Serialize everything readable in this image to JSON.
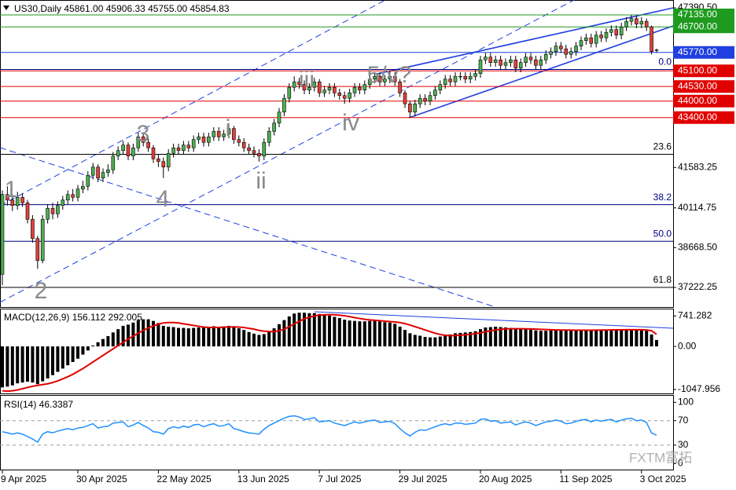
{
  "chart_data": [
    {
      "type": "candlestick",
      "title": "US30,Daily  45861.00 45906.33 45755.00 45854.83",
      "categories": [
        "9 Apr 2025",
        null,
        null,
        null,
        null,
        null,
        null,
        null,
        null,
        null,
        null,
        null,
        null,
        null,
        null,
        "30 Apr 2025",
        null,
        null,
        null,
        null,
        null,
        null,
        null,
        null,
        null,
        null,
        null,
        null,
        null,
        null,
        null,
        "22 May 2025",
        null,
        null,
        null,
        null,
        null,
        null,
        null,
        null,
        null,
        null,
        null,
        null,
        null,
        null,
        null,
        "13 Jun 2025",
        null,
        null,
        null,
        null,
        null,
        null,
        null,
        null,
        null,
        null,
        null,
        null,
        null,
        null,
        null,
        "7 Jul 2025",
        null,
        null,
        null,
        null,
        null,
        null,
        null,
        null,
        null,
        null,
        null,
        null,
        null,
        null,
        null,
        "29 Jul 2025",
        null,
        null,
        null,
        null,
        null,
        null,
        null,
        null,
        null,
        null,
        null,
        null,
        null,
        null,
        null,
        "20 Aug 2025",
        null,
        null,
        null,
        null,
        null,
        null,
        null,
        null,
        null,
        null,
        null,
        null,
        null,
        null,
        null,
        "11 Sep 2025",
        null,
        null,
        null,
        null,
        null,
        null,
        null,
        null,
        null,
        null,
        null,
        null,
        null,
        null,
        null,
        "3 Oct 2025",
        null,
        null,
        null
      ],
      "open": [
        37700,
        40600,
        40400,
        40200,
        40500,
        40300,
        39700,
        39000,
        38200,
        39700,
        40100,
        39900,
        40200,
        40400,
        40600,
        40500,
        40800,
        40900,
        41300,
        41600,
        41200,
        41400,
        41500,
        42000,
        42200,
        42400,
        42000,
        42300,
        42700,
        42500,
        42300,
        41900,
        41800,
        41600,
        42100,
        42300,
        42200,
        42400,
        42300,
        42600,
        42700,
        42500,
        42700,
        42900,
        42700,
        42800,
        43000,
        42600,
        42500,
        42300,
        42200,
        42100,
        42000,
        42500,
        42900,
        43200,
        43600,
        44100,
        44500,
        44700,
        44600,
        44400,
        44500,
        44700,
        44300,
        44400,
        44500,
        44300,
        44200,
        44100,
        44300,
        44500,
        44400,
        44600,
        44800,
        44900,
        44700,
        44800,
        44900,
        44700,
        44300,
        43900,
        43600,
        43900,
        44100,
        44000,
        44200,
        44400,
        44600,
        44800,
        44700,
        44900,
        44900,
        44800,
        44900,
        45000,
        45500,
        45600,
        45400,
        45500,
        45300,
        45400,
        45500,
        45200,
        45400,
        45600,
        45500,
        45300,
        45500,
        45700,
        45800,
        46000,
        45900,
        45700,
        45800,
        46000,
        46200,
        46300,
        46100,
        46400,
        46300,
        46500,
        46600,
        46400,
        46700,
        46900,
        47000,
        46800,
        46900,
        46700,
        45861
      ],
      "high": [
        40750,
        40900,
        40600,
        40700,
        40650,
        40400,
        39850,
        39100,
        39850,
        40250,
        40300,
        40350,
        40550,
        40750,
        40800,
        40950,
        41100,
        41450,
        41750,
        41700,
        41550,
        41700,
        42150,
        42350,
        42550,
        42500,
        42450,
        42850,
        42800,
        42650,
        42400,
        42050,
        41950,
        42250,
        42450,
        42450,
        42550,
        42550,
        42750,
        42850,
        42850,
        42850,
        43050,
        43050,
        42950,
        43200,
        43100,
        42750,
        42650,
        42450,
        42350,
        42250,
        42650,
        43050,
        43350,
        43750,
        44250,
        44650,
        44900,
        44850,
        44750,
        44650,
        44850,
        44800,
        44550,
        44650,
        44650,
        44450,
        44350,
        44450,
        44650,
        44650,
        44750,
        44950,
        45050,
        45050,
        44950,
        45100,
        45050,
        44800,
        44400,
        44000,
        44050,
        44250,
        44250,
        44350,
        44550,
        44750,
        44950,
        44950,
        45050,
        45050,
        45050,
        45050,
        45150,
        45650,
        45750,
        45750,
        45650,
        45650,
        45550,
        45650,
        45650,
        45550,
        45750,
        45750,
        45650,
        45650,
        45850,
        45950,
        46150,
        46150,
        46050,
        45950,
        46150,
        46350,
        46450,
        46450,
        46550,
        46550,
        46650,
        46750,
        46750,
        46850,
        47050,
        47135,
        47100,
        47050,
        47000,
        46750,
        45906.33
      ],
      "low": [
        37300,
        40200,
        40000,
        40050,
        40150,
        39550,
        38850,
        37900,
        38100,
        39550,
        39700,
        39750,
        40050,
        40250,
        40350,
        40350,
        40650,
        40750,
        41150,
        41050,
        41050,
        41250,
        41350,
        41850,
        42050,
        41850,
        41850,
        42150,
        42350,
        42150,
        41750,
        41600,
        41200,
        41450,
        41950,
        42050,
        42050,
        42150,
        42150,
        42450,
        42350,
        42350,
        42550,
        42550,
        42550,
        42650,
        42450,
        42350,
        42150,
        42050,
        41950,
        41800,
        41850,
        42350,
        42750,
        43050,
        43450,
        43950,
        44350,
        44450,
        44250,
        44250,
        44350,
        44150,
        44150,
        44250,
        44150,
        44050,
        43900,
        43950,
        44150,
        44250,
        44250,
        44450,
        44650,
        44550,
        44550,
        44650,
        44550,
        44150,
        43750,
        43400,
        43450,
        43750,
        43850,
        43850,
        44050,
        44250,
        44450,
        44550,
        44550,
        44750,
        44650,
        44650,
        44750,
        44850,
        45350,
        45250,
        45250,
        45150,
        45150,
        45250,
        45050,
        45050,
        45250,
        45350,
        45150,
        45150,
        45350,
        45550,
        45650,
        45750,
        45550,
        45550,
        45650,
        45850,
        46050,
        45950,
        45950,
        46150,
        46150,
        46350,
        46250,
        46250,
        46550,
        46750,
        46650,
        46650,
        46550,
        45700,
        45755
      ],
      "close": [
        40600,
        40400,
        40200,
        40500,
        40300,
        39700,
        39000,
        38200,
        39700,
        40100,
        39900,
        40200,
        40400,
        40600,
        40500,
        40800,
        40900,
        41300,
        41600,
        41200,
        41400,
        41500,
        42000,
        42200,
        42400,
        42000,
        42300,
        42700,
        42500,
        42300,
        41900,
        41800,
        41600,
        42100,
        42300,
        42200,
        42400,
        42300,
        42600,
        42700,
        42500,
        42700,
        42900,
        42700,
        42800,
        43000,
        42600,
        42500,
        42300,
        42200,
        42100,
        42000,
        42500,
        42900,
        43200,
        43600,
        44100,
        44500,
        44700,
        44600,
        44400,
        44500,
        44700,
        44300,
        44400,
        44500,
        44300,
        44200,
        44100,
        44300,
        44500,
        44400,
        44600,
        44800,
        44900,
        44700,
        44800,
        44900,
        44700,
        44300,
        43900,
        43600,
        43900,
        44100,
        44000,
        44200,
        44400,
        44600,
        44800,
        44700,
        44900,
        44900,
        44800,
        44900,
        45000,
        45500,
        45600,
        45400,
        45500,
        45300,
        45400,
        45500,
        45200,
        45400,
        45600,
        45500,
        45300,
        45500,
        45700,
        45800,
        46000,
        45900,
        45700,
        45800,
        46000,
        46200,
        46300,
        46100,
        46400,
        46300,
        46500,
        46600,
        46400,
        46700,
        46900,
        47000,
        46800,
        46900,
        46700,
        45800,
        45854.83
      ],
      "up_color": "#4caf50",
      "down_color": "#e0403a",
      "ylim": [
        36508,
        47677
      ],
      "yticks": [
        {
          "value": 47390.5,
          "label": "47390.50"
        },
        41583.25,
        40114.75,
        {
          "value": 38668.5,
          "label": "38668.50"
        },
        37222.25
      ],
      "levels": [
        {
          "value": 47135,
          "label": "47135.00",
          "color": "#1e9a1e"
        },
        {
          "value": 46700,
          "label": "46700.00",
          "color": "#1e9a1e"
        },
        {
          "value": 45770,
          "label": "45770.00",
          "color": "#1f3fe0"
        },
        {
          "value": 45100,
          "label": "45100.00",
          "color": "#e00000"
        },
        {
          "value": 44530,
          "label": "44530.00",
          "color": "#e00000"
        },
        {
          "value": 44000,
          "label": "44000.00",
          "color": "#e00000"
        },
        {
          "value": 43400,
          "label": "43400.00",
          "color": "#e00000"
        }
      ],
      "fib_levels": [
        {
          "label": "0.0",
          "value": 45150,
          "color": "#000080"
        },
        {
          "label": "23.6",
          "value": 42063,
          "color": "#000000"
        },
        {
          "label": "38.2",
          "value": 40231,
          "color": "#000080"
        },
        {
          "label": "50.0",
          "value": 38901,
          "color": "#000080"
        },
        {
          "label": "61.8",
          "value": 37223,
          "color": "#000000"
        }
      ],
      "annotations": [
        "1",
        "2",
        "3",
        "4",
        "i",
        "ii",
        "iii",
        "iv",
        "5/v?"
      ]
    },
    {
      "type": "macd",
      "title": "MACD(12,26,9) 156.112 292.005",
      "values": [
        -1000,
        -980,
        -950,
        -900,
        -880,
        -860,
        -880,
        -920,
        -850,
        -780,
        -700,
        -620,
        -540,
        -460,
        -380,
        -300,
        -200,
        -100,
        20,
        100,
        180,
        250,
        340,
        420,
        500,
        530,
        580,
        640,
        660,
        660,
        620,
        570,
        500,
        480,
        470,
        450,
        450,
        440,
        450,
        460,
        460,
        470,
        490,
        480,
        480,
        500,
        480,
        440,
        400,
        350,
        310,
        280,
        300,
        360,
        440,
        540,
        640,
        730,
        800,
        820,
        820,
        810,
        810,
        790,
        770,
        750,
        720,
        690,
        650,
        630,
        620,
        610,
        610,
        620,
        630,
        610,
        590,
        580,
        550,
        480,
        400,
        320,
        280,
        260,
        230,
        220,
        220,
        240,
        270,
        290,
        320,
        330,
        340,
        350,
        370,
        420,
        460,
        470,
        480,
        470,
        460,
        450,
        430,
        420,
        420,
        410,
        390,
        380,
        380,
        390,
        400,
        400,
        390,
        380,
        380,
        390,
        400,
        400,
        410,
        410,
        410,
        410,
        400,
        410,
        420,
        420,
        410,
        400,
        380,
        290,
        156.112
      ],
      "signal": [
        -1080,
        -1090,
        -1080,
        -1060,
        -1030,
        -1000,
        -970,
        -950,
        -930,
        -910,
        -880,
        -840,
        -790,
        -740,
        -680,
        -610,
        -540,
        -460,
        -380,
        -300,
        -220,
        -140,
        -60,
        20,
        100,
        180,
        250,
        320,
        390,
        450,
        500,
        540,
        570,
        580,
        580,
        570,
        550,
        530,
        510,
        490,
        470,
        460,
        460,
        460,
        470,
        470,
        475,
        470,
        460,
        440,
        420,
        390,
        370,
        360,
        360,
        380,
        420,
        480,
        550,
        610,
        670,
        710,
        740,
        760,
        770,
        775,
        770,
        760,
        745,
        725,
        700,
        680,
        660,
        645,
        635,
        625,
        615,
        605,
        595,
        580,
        555,
        520,
        480,
        440,
        400,
        360,
        320,
        290,
        270,
        260,
        265,
        275,
        285,
        295,
        310,
        330,
        355,
        380,
        400,
        415,
        425,
        430,
        430,
        430,
        428,
        425,
        420,
        415,
        410,
        405,
        402,
        400,
        398,
        396,
        394,
        393,
        393,
        394,
        396,
        398,
        400,
        402,
        403,
        404,
        405,
        406,
        406,
        405,
        400,
        380,
        292.005
      ],
      "color": "#000000",
      "signal_color": "#e00000",
      "ylim": [
        -1145,
        920
      ],
      "yticks": [
        741.282,
        {
          "value": 0,
          "label": "0.00"
        },
        -1047.956
      ]
    },
    {
      "type": "rsi",
      "title": "RSI(14) 46.3387",
      "values": [
        52,
        50,
        48,
        50,
        48,
        44,
        40,
        35,
        48,
        52,
        50,
        53,
        55,
        57,
        55,
        58,
        59,
        62,
        65,
        58,
        60,
        61,
        66,
        67,
        68,
        60,
        63,
        67,
        62,
        58,
        52,
        51,
        48,
        57,
        60,
        58,
        61,
        59,
        63,
        64,
        60,
        63,
        65,
        61,
        62,
        65,
        57,
        55,
        52,
        50,
        49,
        48,
        56,
        62,
        66,
        70,
        74,
        77,
        78,
        76,
        72,
        73,
        75,
        68,
        69,
        70,
        66,
        64,
        62,
        65,
        68,
        66,
        68,
        70,
        71,
        67,
        68,
        69,
        65,
        57,
        50,
        45,
        51,
        55,
        54,
        57,
        60,
        63,
        65,
        63,
        66,
        66,
        64,
        65,
        66,
        72,
        73,
        69,
        70,
        66,
        67,
        68,
        63,
        66,
        68,
        66,
        62,
        65,
        68,
        69,
        71,
        69,
        65,
        66,
        69,
        71,
        72,
        68,
        71,
        69,
        71,
        72,
        68,
        71,
        73,
        74,
        70,
        71,
        67,
        50,
        46.3387
      ],
      "color": "#1e90ff",
      "ylim": [
        -10,
        112
      ],
      "yticks": [
        100,
        70,
        30,
        0
      ],
      "guide_lines": [
        70,
        30
      ]
    }
  ],
  "watermark": "FXTM富拓"
}
